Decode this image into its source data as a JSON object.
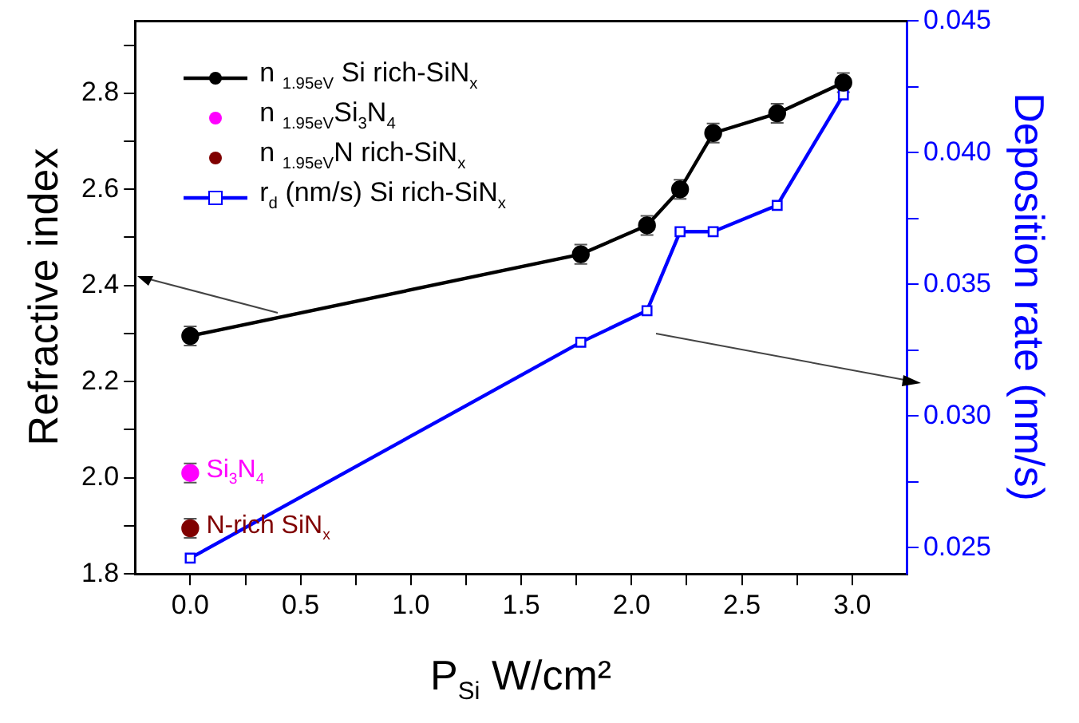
{
  "chart_data": {
    "type": "line",
    "xlabel": "P$_{Si}$ W/cm²",
    "ylabel": "Refractive index",
    "y2label": "Deposition rate (nm/s)",
    "xlim": [
      -0.25,
      3.25
    ],
    "xticks": [
      {
        "value": 0,
        "label": "0.0"
      },
      {
        "value": 0.25,
        "label": null
      },
      {
        "value": 0.5,
        "label": "0.5"
      },
      {
        "value": 0.75,
        "label": null
      },
      {
        "value": 1,
        "label": "1.0"
      },
      {
        "value": 1.25,
        "label": null
      },
      {
        "value": 1.5,
        "label": "1.5"
      },
      {
        "value": 1.75,
        "label": null
      },
      {
        "value": 2,
        "label": "2.0"
      },
      {
        "value": 2.25,
        "label": null
      },
      {
        "value": 2.5,
        "label": "2.5"
      },
      {
        "value": 2.75,
        "label": null
      },
      {
        "value": 3,
        "label": "3.0"
      }
    ],
    "ylim": [
      1.8,
      2.95
    ],
    "yticks": [
      1.8,
      {
        "value": 1.9,
        "label": null
      },
      {
        "value": 2.0,
        "label": "2.0"
      },
      {
        "value": 2.1,
        "label": null
      },
      2.2,
      {
        "value": 2.3,
        "label": null
      },
      2.4,
      {
        "value": 2.5,
        "label": null
      },
      2.6,
      {
        "value": 2.7,
        "label": null
      },
      2.8,
      {
        "value": 2.9,
        "label": null
      }
    ],
    "y2lim": [
      0.024,
      0.045
    ],
    "y2ticks": [
      0.025,
      {
        "value": 0.0275,
        "label": null
      },
      {
        "value": 0.03,
        "label": "0.030"
      },
      {
        "value": 0.0325,
        "label": null
      },
      0.035,
      {
        "value": 0.0375,
        "label": null
      },
      {
        "value": 0.04,
        "label": "0.040"
      },
      {
        "value": 0.0425,
        "label": null
      },
      0.045
    ],
    "legend": "top left",
    "grid": false,
    "series": [
      {
        "name": "n $_{1.95eV}$ Si rich-SiN$_{x}$",
        "color": "#000000",
        "marker": "circle",
        "x": [
          0,
          1.77,
          2.07,
          2.22,
          2.37,
          2.66,
          2.96
        ],
        "values": [
          2.295,
          2.465,
          2.525,
          2.6,
          2.717,
          2.758,
          2.822
        ],
        "errors": [
          0.02,
          0.02,
          0.02,
          0.02,
          0.02,
          0.02,
          0.02
        ]
      },
      {
        "name": "n $_{1.95eV}$Si$_{3}$N$_{4}$",
        "type": "scatter",
        "color": "#ff00ff",
        "marker": "circle",
        "x": [
          0
        ],
        "values": [
          2.01
        ],
        "errors": [
          0.02
        ]
      },
      {
        "name": "n $_{1.95eV}$N rich-SiN$_{x}$",
        "type": "scatter",
        "color": "#800000",
        "marker": "circle",
        "x": [
          0
        ],
        "values": [
          1.895
        ],
        "errors": [
          0.02
        ]
      },
      {
        "name": "r$_{d}$ (nm/s) Si rich-SiN$_{x}$",
        "axis": "y2",
        "color": "#0000ff",
        "marker": "square",
        "x": [
          0,
          1.77,
          2.07,
          2.22,
          2.37,
          2.66,
          2.96
        ],
        "values": [
          0.0246,
          0.0328,
          0.034,
          0.037,
          0.037,
          0.038,
          0.0422
        ]
      }
    ],
    "annotations": [
      {
        "text": "Si$_{3}$N$_{4}$",
        "x": 0,
        "y": 2.01
      },
      {
        "text": "N-rich SiN$_{x}$",
        "x": 0,
        "y": 1.895
      }
    ]
  }
}
